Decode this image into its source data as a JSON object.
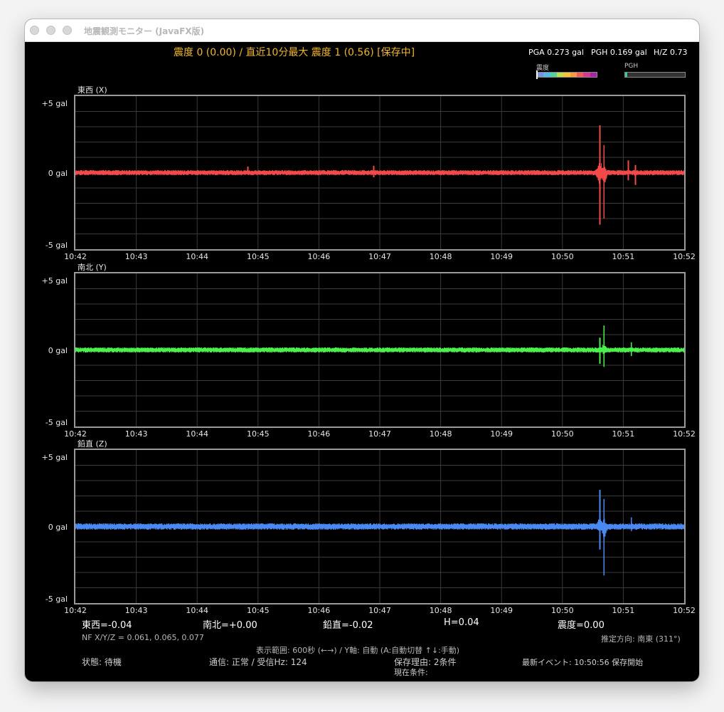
{
  "window": {
    "title": "地震観測モニター (JavaFX版)"
  },
  "header": {
    "headline": "震度 0 (0.00)  /  直近10分最大 震度 1 (0.56) [保存中]",
    "pga": "PGA 0.273 gal",
    "pgh": "PGH 0.169 gal",
    "hz": "H/Z 0.73",
    "intensity_meter_label": "震度",
    "intensity_meter_level": 0.0,
    "pgh_meter_label": "PGH",
    "pgh_meter_level": 0.03,
    "intensity_colors": [
      "#7b93d8",
      "#58b9e8",
      "#55d09a",
      "#bfdc55",
      "#f3c53a",
      "#f39a44",
      "#ef5a5a",
      "#d23a8e",
      "#a426a4"
    ],
    "pgh_color": "#2ed08c"
  },
  "charts": [
    {
      "title": "東西 (X)",
      "color": "#f24a4a"
    },
    {
      "title": "南北 (Y)",
      "color": "#4cf04c"
    },
    {
      "title": "鉛直 (Z)",
      "color": "#4a88f2"
    }
  ],
  "chart_data": [
    {
      "type": "line",
      "title": "東西 (X)",
      "y_tick_labels": [
        "+5 gal",
        "0 gal",
        "-5 gal"
      ],
      "ylim": [
        -5,
        5
      ],
      "categories": [
        "10:42",
        "10:43",
        "10:44",
        "10:45",
        "10:46",
        "10:47",
        "10:48",
        "10:49",
        "10:50",
        "10:51",
        "10:52"
      ],
      "grid": true,
      "series": [
        {
          "color": "#f24a4a",
          "noise_amplitude": 0.12,
          "spikes": [
            {
              "time": "10:44:50",
              "max": 0.4,
              "min": -0.1
            },
            {
              "time": "10:46:54",
              "max": 0.45,
              "min": -0.3
            },
            {
              "time": "10:50:37",
              "max": 3.1,
              "min": -3.4
            },
            {
              "time": "10:50:41",
              "max": 1.8,
              "min": -3.0
            },
            {
              "time": "10:51:05",
              "max": 0.8,
              "min": -0.5
            },
            {
              "time": "10:51:12",
              "max": 0.5,
              "min": -0.8
            }
          ]
        }
      ]
    },
    {
      "type": "line",
      "title": "南北 (Y)",
      "y_tick_labels": [
        "+5 gal",
        "0 gal",
        "-5 gal"
      ],
      "ylim": [
        -5,
        5
      ],
      "categories": [
        "10:42",
        "10:43",
        "10:44",
        "10:45",
        "10:46",
        "10:47",
        "10:48",
        "10:49",
        "10:50",
        "10:51",
        "10:52"
      ],
      "grid": true,
      "series": [
        {
          "color": "#4cf04c",
          "noise_amplitude": 0.12,
          "spikes": [
            {
              "time": "10:50:37",
              "max": 0.8,
              "min": -0.9
            },
            {
              "time": "10:50:41",
              "max": 1.6,
              "min": -1.1
            },
            {
              "time": "10:51:08",
              "max": 0.5,
              "min": -0.4
            }
          ]
        }
      ]
    },
    {
      "type": "line",
      "title": "鉛直 (Z)",
      "y_tick_labels": [
        "+5 gal",
        "0 gal",
        "-5 gal"
      ],
      "ylim": [
        -5,
        5
      ],
      "categories": [
        "10:42",
        "10:43",
        "10:44",
        "10:45",
        "10:46",
        "10:47",
        "10:48",
        "10:49",
        "10:50",
        "10:51",
        "10:52"
      ],
      "grid": true,
      "series": [
        {
          "color": "#4a88f2",
          "noise_amplitude": 0.15,
          "spikes": [
            {
              "time": "10:50:37",
              "max": 2.4,
              "min": -1.5
            },
            {
              "time": "10:50:41",
              "max": 1.8,
              "min": -3.2
            },
            {
              "time": "10:51:08",
              "max": 0.6,
              "min": -0.3
            }
          ]
        }
      ]
    }
  ],
  "readouts": {
    "ew": "東西=-0.04",
    "ns": "南北=+0.00",
    "vert": "鉛直=-0.02",
    "h": "H=0.04",
    "intensity": "震度=0.00"
  },
  "info": {
    "nf": "NF X/Y/Z = 0.061, 0.065, 0.077",
    "direction": "推定方向: 南東 (311°)",
    "range": "表示範囲: 600秒 (←→) / Y軸: 自動 (A:自動切替 ↑↓:手動)"
  },
  "status": {
    "state": "状態: 待機",
    "comm": "通信: 正常 / 受信Hz: 124",
    "save_reason": "保存理由: 2条件",
    "current_cond": "現在条件:",
    "latest_event": "最新イベント: 10:50:56 保存開始"
  }
}
